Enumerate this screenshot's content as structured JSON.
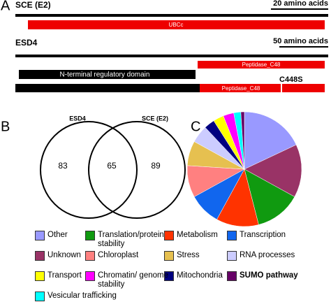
{
  "panel_a": {
    "label": "A",
    "sce_name": "SCE (E2)",
    "sce_scale": "20 amino acids",
    "sce_domain": "UBCc",
    "esd4_name": "ESD4",
    "esd4_scale": "50 amino acids",
    "esd4_domain": "Peptidase_C48",
    "nterm_label": "N-terminal regulatory domain",
    "mutant_domain": "Peptidase_C48",
    "mutant_label": "C448S"
  },
  "chart_data": [
    {
      "type": "venn",
      "label": "B",
      "sets": [
        "ESD4",
        "SCE (E2)"
      ],
      "values": [
        83,
        65,
        89
      ]
    },
    {
      "type": "pie",
      "label": "C",
      "categories": [
        "Other",
        "Unknown",
        "Translation/protein stability",
        "Metabolism",
        "Transcription",
        "Chloroplast",
        "Stress",
        "RNA processes",
        "Mitochondria",
        "Transport",
        "Chromatin/ genome stability",
        "Vesicular trafficking",
        "SUMO pathway"
      ],
      "values": [
        18,
        15,
        13,
        12,
        9,
        9,
        7,
        5,
        3,
        3,
        3,
        2,
        1
      ],
      "colors": [
        "#9999ff",
        "#993366",
        "#109a10",
        "#ff3300",
        "#1166ee",
        "#ff8080",
        "#e6c050",
        "#ccccff",
        "#000080",
        "#ffff00",
        "#ff00ff",
        "#00ffff",
        "#660066"
      ]
    }
  ]
}
